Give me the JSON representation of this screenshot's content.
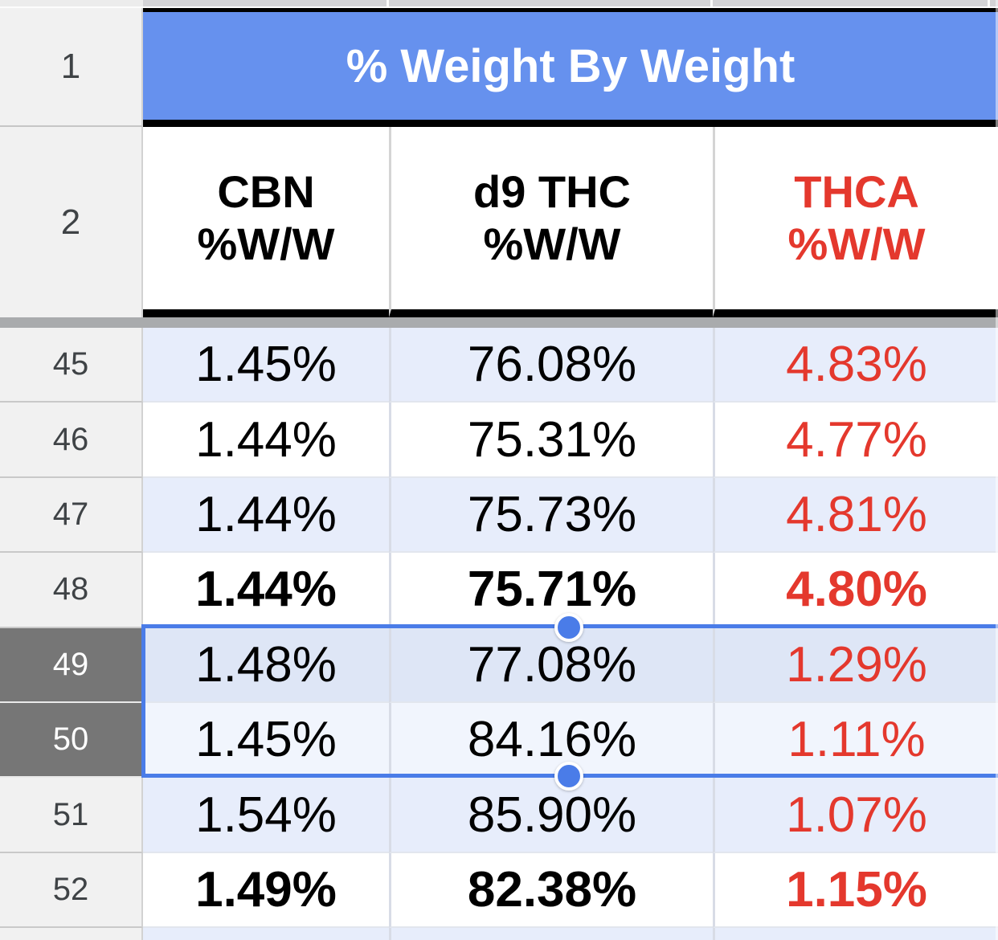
{
  "sheet": {
    "merged_title": "% Weight By Weight",
    "row1_num": "1",
    "row2_num": "2",
    "columns": [
      {
        "line1": "CBN",
        "line2": "%W/W",
        "red": false
      },
      {
        "line1": "d9 THC",
        "line2": "%W/W",
        "red": false
      },
      {
        "line1": "THCA",
        "line2": "%W/W",
        "red": true
      }
    ],
    "column_keys": [
      "cbn",
      "d9_thc",
      "thca"
    ],
    "rows": [
      {
        "num": "45",
        "cbn": "1.45%",
        "d9_thc": "76.08%",
        "thca": "4.83%",
        "banded": true,
        "bold": false,
        "selected": false
      },
      {
        "num": "46",
        "cbn": "1.44%",
        "d9_thc": "75.31%",
        "thca": "4.77%",
        "banded": false,
        "bold": false,
        "selected": false
      },
      {
        "num": "47",
        "cbn": "1.44%",
        "d9_thc": "75.73%",
        "thca": "4.81%",
        "banded": true,
        "bold": false,
        "selected": false
      },
      {
        "num": "48",
        "cbn": "1.44%",
        "d9_thc": "75.71%",
        "thca": "4.80%",
        "banded": false,
        "bold": true,
        "selected": false
      },
      {
        "num": "49",
        "cbn": "1.48%",
        "d9_thc": "77.08%",
        "thca": "1.29%",
        "banded": true,
        "bold": false,
        "selected": true
      },
      {
        "num": "50",
        "cbn": "1.45%",
        "d9_thc": "84.16%",
        "thca": "1.11%",
        "banded": false,
        "bold": false,
        "selected": true
      },
      {
        "num": "51",
        "cbn": "1.54%",
        "d9_thc": "85.90%",
        "thca": "1.07%",
        "banded": true,
        "bold": false,
        "selected": false
      },
      {
        "num": "52",
        "cbn": "1.49%",
        "d9_thc": "82.38%",
        "thca": "1.15%",
        "banded": false,
        "bold": true,
        "selected": false
      }
    ]
  },
  "colors": {
    "header-blue": "#6691ee",
    "red-text": "#e4382d",
    "band-blue": "#e7edfb",
    "sel-band": "#dee6f6",
    "sel-white": "#f1f5fd",
    "selection-blue": "#4a7ce8",
    "selected-rowhead": "#767676",
    "colhead-gray": "#d3d3d6"
  }
}
